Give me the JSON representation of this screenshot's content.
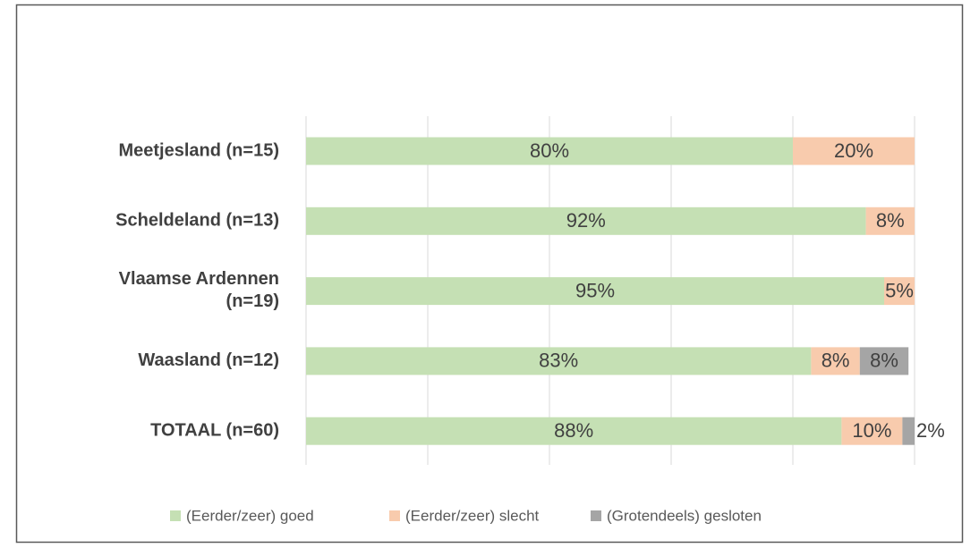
{
  "chart_data": {
    "type": "stacked_barh",
    "categories": [
      "Meetjesland (n=15)",
      "Scheldeland (n=13)",
      "Vlaamse Ardennen (n=19)",
      "Waasland (n=12)",
      "TOTAAL (n=60)"
    ],
    "series": [
      {
        "name": "(Eerder/zeer) goed",
        "color": "#c5e0b4",
        "values": [
          80,
          92,
          95,
          83,
          88
        ],
        "value_labels": [
          "80%",
          "92%",
          "95%",
          "83%",
          "88%"
        ]
      },
      {
        "name": "(Eerder/zeer) slecht",
        "color": "#f8cbad",
        "values": [
          20,
          8,
          5,
          8,
          10
        ],
        "value_labels": [
          "20%",
          "8%",
          "5%",
          "8%",
          "10%"
        ]
      },
      {
        "name": "(Grotendeels) gesloten",
        "color": "#a5a5a5",
        "values": [
          0,
          0,
          0,
          8,
          2
        ],
        "value_labels": [
          null,
          null,
          null,
          "8%",
          "2%"
        ]
      }
    ],
    "xlim": [
      0,
      100
    ],
    "xticks": [
      0,
      20,
      40,
      60,
      80,
      100
    ],
    "grid": true,
    "legend": "bottom"
  }
}
